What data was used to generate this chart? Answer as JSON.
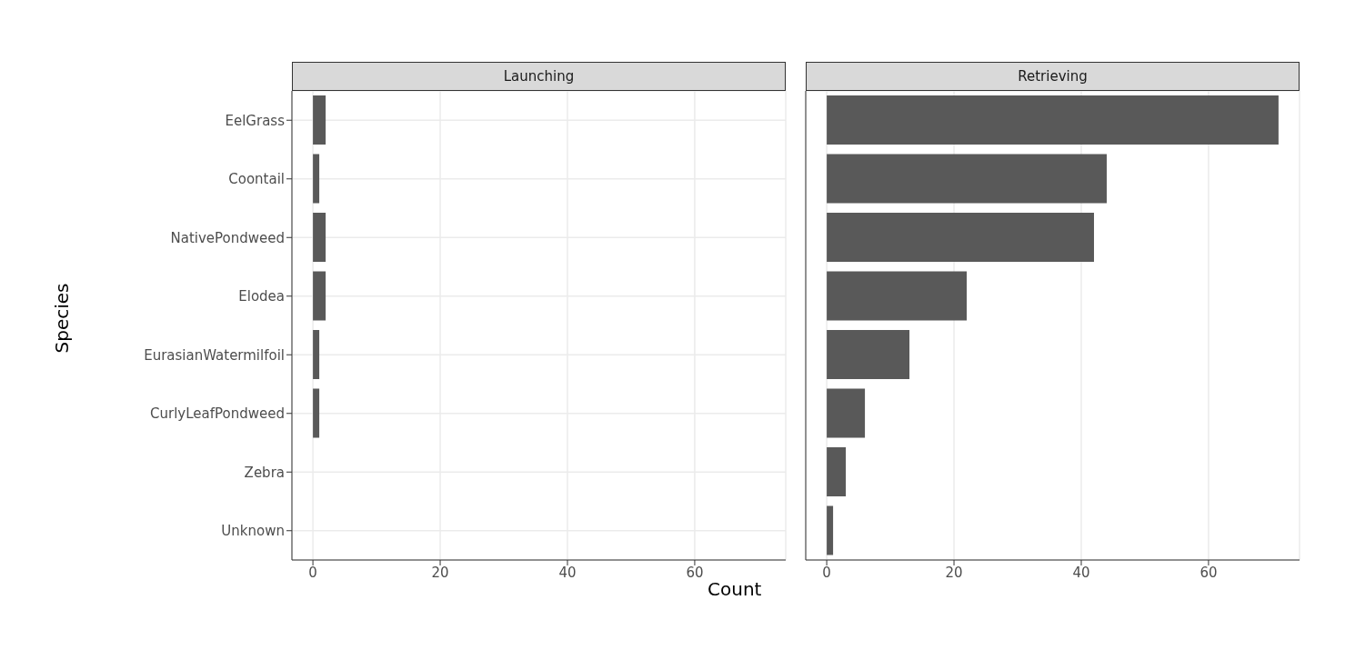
{
  "chart_data": [
    {
      "type": "bar",
      "orientation": "horizontal",
      "title": "Launching",
      "ylabel": "Species",
      "categories": [
        "EelGrass",
        "Coontail",
        "NativePondweed",
        "Elodea",
        "EurasianWatermilfoil",
        "CurlyLeafPondweed",
        "Zebra",
        "Unknown"
      ],
      "values": [
        2,
        1,
        2,
        2,
        1,
        1,
        0,
        0
      ],
      "color": "#595959",
      "xlim": [
        -3.3,
        74.3
      ],
      "xticks": [
        0,
        20,
        40,
        60
      ],
      "grid": true
    },
    {
      "type": "bar",
      "orientation": "horizontal",
      "title": "Retrieving",
      "xlabel": "Count",
      "categories": [
        null,
        null,
        null,
        null,
        null,
        null,
        null,
        null
      ],
      "values": [
        71,
        44,
        42,
        22,
        13,
        6,
        3,
        1
      ],
      "color": "#595959",
      "xlim": [
        -3.3,
        74.3
      ],
      "xticks": [
        0,
        20,
        40,
        60
      ],
      "grid": true,
      "tick_labels": "x"
    }
  ]
}
